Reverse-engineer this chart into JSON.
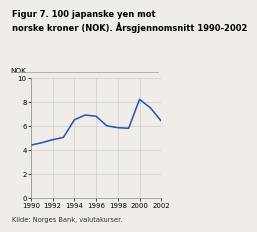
{
  "title_line1": "Figur 7. 100 japanske yen mot",
  "title_line2": "norske kroner (NOK). Årsgjennomsnitt 1990-2002",
  "ylabel": "NOK",
  "source": "Kilde: Norges Bank, valutakurser.",
  "years": [
    1990,
    1991,
    1992,
    1993,
    1994,
    1995,
    1996,
    1997,
    1998,
    1999,
    2000,
    2001,
    2002
  ],
  "values": [
    4.4,
    4.6,
    4.85,
    5.05,
    6.5,
    6.9,
    6.8,
    6.0,
    5.85,
    5.8,
    8.2,
    7.5,
    6.4
  ],
  "ylim": [
    0,
    10
  ],
  "yticks": [
    0,
    2,
    4,
    6,
    8,
    10
  ],
  "xticks": [
    1990,
    1992,
    1994,
    1996,
    1998,
    2000,
    2002
  ],
  "line_color": "#2255aa",
  "line_width": 1.1,
  "bg_color": "#f0ede8",
  "plot_bg_color": "#f0ede8",
  "grid_color": "#cccccc",
  "title_fontsize": 6.0,
  "label_fontsize": 5.2,
  "tick_fontsize": 5.0,
  "source_fontsize": 4.8
}
